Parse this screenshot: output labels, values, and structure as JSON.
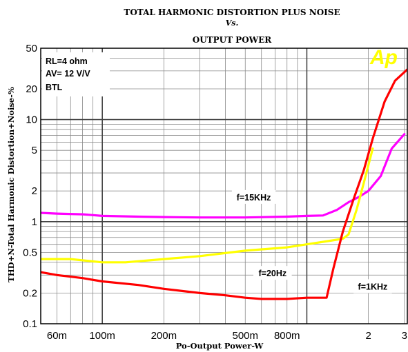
{
  "chart_data": {
    "type": "line",
    "title_lines": [
      "TOTAL HARMONIC DISTORTION PLUS NOISE",
      "Vs.",
      "OUTPUT POWER"
    ],
    "xlabel": "Po-Output Power-W",
    "ylabel": "THD+N-Total Harmonic Distortion+Noise-%",
    "xscale": "log",
    "yscale": "log",
    "xlim": [
      0.05,
      3.1
    ],
    "ylim": [
      0.1,
      50
    ],
    "x_ticks": [
      {
        "value": 0.06,
        "label": "60m"
      },
      {
        "value": 0.1,
        "label": "100m"
      },
      {
        "value": 0.2,
        "label": "200m"
      },
      {
        "value": 0.5,
        "label": "500m"
      },
      {
        "value": 0.8,
        "label": "800m"
      },
      {
        "value": 2,
        "label": "2"
      },
      {
        "value": 3,
        "label": "3"
      }
    ],
    "y_ticks": [
      {
        "value": 0.1,
        "label": "0.1"
      },
      {
        "value": 0.2,
        "label": "0.2"
      },
      {
        "value": 0.5,
        "label": "0.5"
      },
      {
        "value": 1,
        "label": "1"
      },
      {
        "value": 2,
        "label": "2"
      },
      {
        "value": 5,
        "label": "5"
      },
      {
        "value": 10,
        "label": "10"
      },
      {
        "value": 20,
        "label": "20"
      },
      {
        "value": 50,
        "label": "50"
      }
    ],
    "grid": true,
    "conditions": [
      "RL=4 ohm",
      "AV= 12 V/V",
      "BTL"
    ],
    "logo_text": "Ap",
    "series": [
      {
        "name": "f=15KHz",
        "color": "#ff00ff",
        "points": [
          [
            0.05,
            1.22
          ],
          [
            0.06,
            1.2
          ],
          [
            0.08,
            1.18
          ],
          [
            0.1,
            1.14
          ],
          [
            0.15,
            1.12
          ],
          [
            0.2,
            1.11
          ],
          [
            0.3,
            1.1
          ],
          [
            0.5,
            1.1
          ],
          [
            0.8,
            1.12
          ],
          [
            1.0,
            1.14
          ],
          [
            1.2,
            1.15
          ],
          [
            1.4,
            1.3
          ],
          [
            1.6,
            1.55
          ],
          [
            1.8,
            1.75
          ],
          [
            2.0,
            2.0
          ],
          [
            2.3,
            2.8
          ],
          [
            2.6,
            5.2
          ],
          [
            3.0,
            7.2
          ]
        ]
      },
      {
        "name": "f=20Hz",
        "color": "#ffff00",
        "points": [
          [
            0.05,
            0.43
          ],
          [
            0.07,
            0.43
          ],
          [
            0.1,
            0.4
          ],
          [
            0.13,
            0.4
          ],
          [
            0.2,
            0.43
          ],
          [
            0.3,
            0.46
          ],
          [
            0.5,
            0.52
          ],
          [
            0.8,
            0.56
          ],
          [
            1.0,
            0.6
          ],
          [
            1.3,
            0.65
          ],
          [
            1.5,
            0.68
          ],
          [
            1.6,
            0.75
          ],
          [
            1.75,
            1.3
          ],
          [
            1.9,
            2.4
          ],
          [
            2.1,
            5.2
          ]
        ]
      },
      {
        "name": "f=1KHz",
        "color": "#ff0000",
        "points": [
          [
            0.05,
            0.32
          ],
          [
            0.06,
            0.3
          ],
          [
            0.08,
            0.28
          ],
          [
            0.1,
            0.26
          ],
          [
            0.15,
            0.24
          ],
          [
            0.2,
            0.22
          ],
          [
            0.3,
            0.2
          ],
          [
            0.4,
            0.19
          ],
          [
            0.5,
            0.18
          ],
          [
            0.6,
            0.175
          ],
          [
            0.8,
            0.175
          ],
          [
            1.0,
            0.18
          ],
          [
            1.1,
            0.18
          ],
          [
            1.25,
            0.18
          ],
          [
            1.35,
            0.35
          ],
          [
            1.5,
            0.8
          ],
          [
            1.7,
            1.7
          ],
          [
            1.9,
            3.2
          ],
          [
            2.1,
            6.5
          ],
          [
            2.4,
            15
          ],
          [
            2.7,
            24
          ],
          [
            3.1,
            31
          ]
        ]
      }
    ],
    "series_labels": [
      {
        "text": "f=15KHz",
        "x": 0.55,
        "y": 1.72
      },
      {
        "text": "f=20Hz",
        "x": 0.68,
        "y": 0.31
      },
      {
        "text": "f=1KHz",
        "x": 2.1,
        "y": 0.23
      }
    ]
  }
}
